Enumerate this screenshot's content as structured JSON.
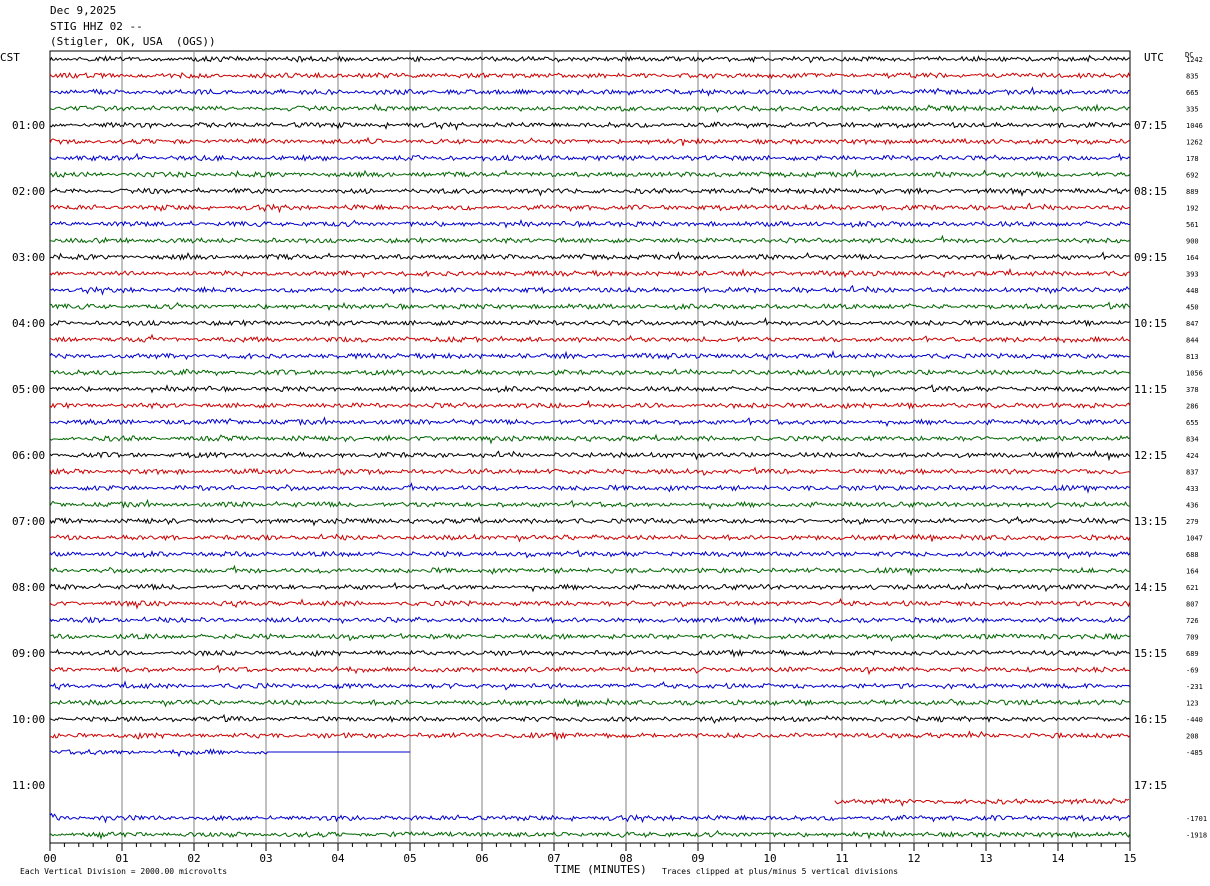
{
  "header": {
    "date": "Dec 9,2025",
    "station": "STIG HHZ 02 --",
    "location": "(Stigler, OK, USA  (OGS))"
  },
  "labels": {
    "left_zone": "CST",
    "right_zone": "UTC",
    "dc": "DC"
  },
  "footer": {
    "scale": "Each Vertical Division = 2000.00 microvolts",
    "xaxis": "TIME (MINUTES)",
    "clip": "Traces clipped at plus/minus 5 vertical divisions"
  },
  "colors": {
    "black": "#000000",
    "red": "#cc0000",
    "blue": "#0000cc",
    "green": "#006600"
  },
  "chart_data": {
    "type": "line",
    "title": "STIG HHZ 02 --",
    "xlabel": "TIME (MINUTES)",
    "xlim": [
      0,
      15
    ],
    "x_ticks": [
      "00",
      "01",
      "02",
      "03",
      "04",
      "05",
      "06",
      "07",
      "08",
      "09",
      "10",
      "11",
      "12",
      "13",
      "14",
      "15"
    ],
    "row_color_cycle": [
      "black",
      "red",
      "blue",
      "green"
    ],
    "left_hour_labels": [
      "01:00",
      "02:00",
      "03:00",
      "04:00",
      "05:00",
      "06:00",
      "07:00",
      "08:00",
      "09:00",
      "10:00",
      "11:00"
    ],
    "right_hour_labels": [
      "07:15",
      "08:15",
      "09:15",
      "10:15",
      "11:15",
      "12:15",
      "13:15",
      "14:15",
      "15:15",
      "16:15",
      "17:15"
    ],
    "rows": [
      {
        "dc": "1242",
        "start": 0,
        "end": 15
      },
      {
        "dc": "835",
        "start": 0,
        "end": 15
      },
      {
        "dc": "665",
        "start": 0,
        "end": 15
      },
      {
        "dc": "335",
        "start": 0,
        "end": 15
      },
      {
        "dc": "1046",
        "start": 0,
        "end": 15
      },
      {
        "dc": "1262",
        "start": 0,
        "end": 15
      },
      {
        "dc": "178",
        "start": 0,
        "end": 15
      },
      {
        "dc": "692",
        "start": 0,
        "end": 15
      },
      {
        "dc": "889",
        "start": 0,
        "end": 15
      },
      {
        "dc": "192",
        "start": 0,
        "end": 15
      },
      {
        "dc": "561",
        "start": 0,
        "end": 15
      },
      {
        "dc": "900",
        "start": 0,
        "end": 15
      },
      {
        "dc": "164",
        "start": 0,
        "end": 15
      },
      {
        "dc": "393",
        "start": 0,
        "end": 15
      },
      {
        "dc": "448",
        "start": 0,
        "end": 15
      },
      {
        "dc": "450",
        "start": 0,
        "end": 15
      },
      {
        "dc": "847",
        "start": 0,
        "end": 15
      },
      {
        "dc": "844",
        "start": 0,
        "end": 15
      },
      {
        "dc": "813",
        "start": 0,
        "end": 15
      },
      {
        "dc": "1056",
        "start": 0,
        "end": 15
      },
      {
        "dc": "378",
        "start": 0,
        "end": 15
      },
      {
        "dc": "286",
        "start": 0,
        "end": 15
      },
      {
        "dc": "655",
        "start": 0,
        "end": 15
      },
      {
        "dc": "834",
        "start": 0,
        "end": 15
      },
      {
        "dc": "424",
        "start": 0,
        "end": 15
      },
      {
        "dc": "837",
        "start": 0,
        "end": 15
      },
      {
        "dc": "433",
        "start": 0,
        "end": 15
      },
      {
        "dc": "436",
        "start": 0,
        "end": 15
      },
      {
        "dc": "279",
        "start": 0,
        "end": 15
      },
      {
        "dc": "1047",
        "start": 0,
        "end": 15
      },
      {
        "dc": "688",
        "start": 0,
        "end": 15
      },
      {
        "dc": "164",
        "start": 0,
        "end": 15
      },
      {
        "dc": "621",
        "start": 0,
        "end": 15
      },
      {
        "dc": "807",
        "start": 0,
        "end": 15
      },
      {
        "dc": "726",
        "start": 0,
        "end": 15
      },
      {
        "dc": "709",
        "start": 0,
        "end": 15
      },
      {
        "dc": "689",
        "start": 0,
        "end": 15
      },
      {
        "dc": "-69",
        "start": 0,
        "end": 15
      },
      {
        "dc": "-231",
        "start": 0,
        "end": 15
      },
      {
        "dc": "123",
        "start": 0,
        "end": 15
      },
      {
        "dc": "-440",
        "start": 0,
        "end": 15
      },
      {
        "dc": "208",
        "start": 0,
        "end": 15
      },
      {
        "dc": "-485",
        "start": 0,
        "end": 5,
        "flat_from": 3
      },
      {
        "dc": "",
        "start": 0,
        "end": 0
      },
      {
        "dc": "",
        "start": 0,
        "end": 0
      },
      {
        "dc": "",
        "start": 10.9,
        "end": 15
      },
      {
        "dc": "-1701",
        "start": 0,
        "end": 15
      },
      {
        "dc": "-1918",
        "start": 0,
        "end": 15
      }
    ]
  }
}
